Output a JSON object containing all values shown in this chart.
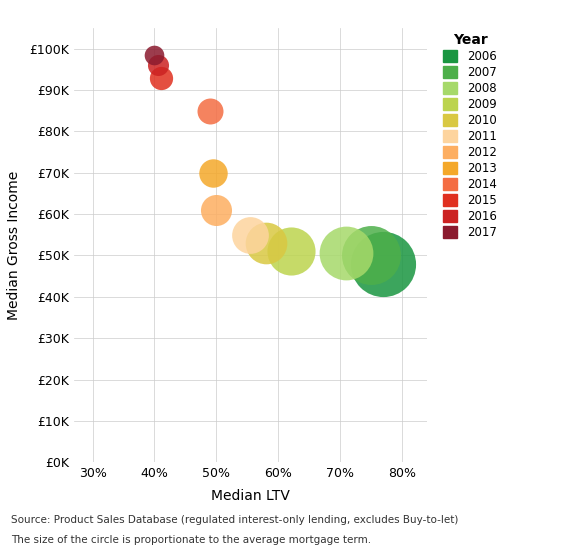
{
  "years": [
    2006,
    2007,
    2008,
    2009,
    2010,
    2011,
    2012,
    2013,
    2014,
    2015,
    2016,
    2017
  ],
  "median_ltv": [
    0.77,
    0.75,
    0.71,
    0.62,
    0.58,
    0.555,
    0.5,
    0.495,
    0.49,
    0.41,
    0.405,
    0.4
  ],
  "median_income": [
    48000,
    50000,
    50500,
    51000,
    53000,
    55000,
    61000,
    70000,
    85000,
    93000,
    96000,
    98500
  ],
  "bubble_size": [
    2200,
    1800,
    1500,
    1200,
    900,
    700,
    500,
    420,
    350,
    280,
    230,
    200
  ],
  "colors": [
    "#1a9641",
    "#4daf4a",
    "#a6d96a",
    "#bcd44e",
    "#d9c842",
    "#fdd49e",
    "#fdae61",
    "#f4a82a",
    "#f46d43",
    "#e03020",
    "#cc2222",
    "#8b1a2e"
  ],
  "xlabel": "Median LTV",
  "ylabel": "Median Gross Income",
  "xlim": [
    0.27,
    0.84
  ],
  "ylim": [
    0,
    105000
  ],
  "yticks": [
    0,
    10000,
    20000,
    30000,
    40000,
    50000,
    60000,
    70000,
    80000,
    90000,
    100000
  ],
  "xticks": [
    0.3,
    0.4,
    0.5,
    0.6,
    0.7,
    0.8
  ],
  "source_text": "Source: Product Sales Database (regulated interest-only lending, excludes Buy-to-let)",
  "note_text": "The size of the circle is proportionate to the average mortgage term.",
  "bg_color": "#ffffff",
  "grid_color": "#cccccc",
  "legend_title": "Year"
}
